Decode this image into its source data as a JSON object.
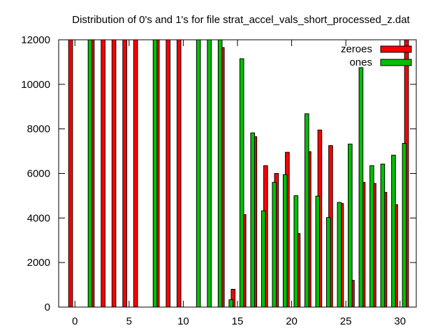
{
  "chart_data": {
    "type": "bar",
    "title": "Distribution of 0's and 1's for file strat_accel_vals_short_processed_z.dat",
    "xlabel": "",
    "ylabel": "",
    "xlim": [
      -1.5,
      31.5
    ],
    "ylim": [
      0,
      12000
    ],
    "x_ticks": [
      0,
      5,
      10,
      15,
      20,
      25,
      30
    ],
    "y_ticks": [
      0,
      2000,
      4000,
      6000,
      8000,
      10000,
      12000
    ],
    "grid": false,
    "legend_position": "top-right",
    "x": [
      0,
      1,
      2,
      3,
      4,
      5,
      6,
      7,
      8,
      9,
      10,
      11,
      12,
      13,
      14,
      15,
      16,
      17,
      18,
      19,
      20,
      21,
      22,
      23,
      24,
      25,
      26,
      27,
      28,
      29,
      30,
      31
    ],
    "series": [
      {
        "name": "zeroes",
        "color": "#ff0000",
        "values": [
          12000,
          0,
          12000,
          12000,
          12000,
          12000,
          12000,
          0,
          12000,
          12000,
          12000,
          0,
          0,
          0,
          11650,
          800,
          4150,
          7650,
          6350,
          6000,
          6950,
          3300,
          6980,
          7950,
          7250,
          4650,
          1200,
          5600,
          5550,
          5150,
          4600,
          12000
        ]
      },
      {
        "name": "ones",
        "color": "#00c000",
        "values": [
          0,
          12000,
          0,
          0,
          0,
          0,
          0,
          12000,
          0,
          0,
          0,
          12000,
          12000,
          12000,
          330,
          11150,
          7820,
          4320,
          5600,
          5950,
          5000,
          8680,
          4980,
          4020,
          4700,
          7320,
          10750,
          6350,
          6420,
          6820,
          7350,
          0
        ]
      }
    ]
  }
}
